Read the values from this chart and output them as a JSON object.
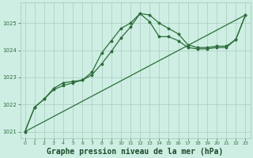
{
  "bg_color": "#ceeee4",
  "grid_color": "#a8ccbe",
  "line_color": "#2d6e3a",
  "xlabel": "Graphe pression niveau de la mer (hPa)",
  "xlabel_fontsize": 7,
  "xlabel_color": "#1a4a28",
  "xlim": [
    -0.5,
    23.5
  ],
  "ylim": [
    1020.75,
    1025.75
  ],
  "yticks": [
    1021,
    1022,
    1023,
    1024,
    1025
  ],
  "xticks": [
    0,
    1,
    2,
    3,
    4,
    5,
    6,
    7,
    8,
    9,
    10,
    11,
    12,
    13,
    14,
    15,
    16,
    17,
    18,
    19,
    20,
    21,
    22,
    23
  ],
  "series_straight": {
    "x": [
      0,
      23
    ],
    "y": [
      1021.0,
      1025.3
    ]
  },
  "series_main": {
    "x": [
      0,
      1,
      2,
      3,
      4,
      5,
      6,
      7,
      8,
      9,
      10,
      11,
      12,
      13,
      14,
      15,
      16,
      17,
      18,
      19,
      20,
      21,
      22,
      23
    ],
    "y": [
      1021.0,
      1021.9,
      1022.2,
      1022.6,
      1022.8,
      1022.85,
      1022.9,
      1023.2,
      1023.9,
      1024.35,
      1024.8,
      1025.0,
      1025.35,
      1025.3,
      1025.0,
      1024.8,
      1024.6,
      1024.2,
      1024.1,
      1024.1,
      1024.15,
      1024.15,
      1024.4,
      1025.3
    ]
  },
  "series_second": {
    "x": [
      0,
      1,
      2,
      3,
      4,
      5,
      6,
      7,
      8,
      9,
      10,
      11,
      12,
      13,
      14,
      15,
      16,
      17,
      18,
      19,
      20,
      21,
      22,
      23
    ],
    "y": [
      1021.0,
      1021.9,
      1022.2,
      1022.55,
      1022.7,
      1022.8,
      1022.9,
      1023.1,
      1023.5,
      1023.95,
      1024.45,
      1024.85,
      1025.35,
      1025.05,
      1024.5,
      1024.5,
      1024.35,
      1024.1,
      1024.05,
      1024.05,
      1024.1,
      1024.1,
      1024.4,
      1025.3
    ]
  }
}
